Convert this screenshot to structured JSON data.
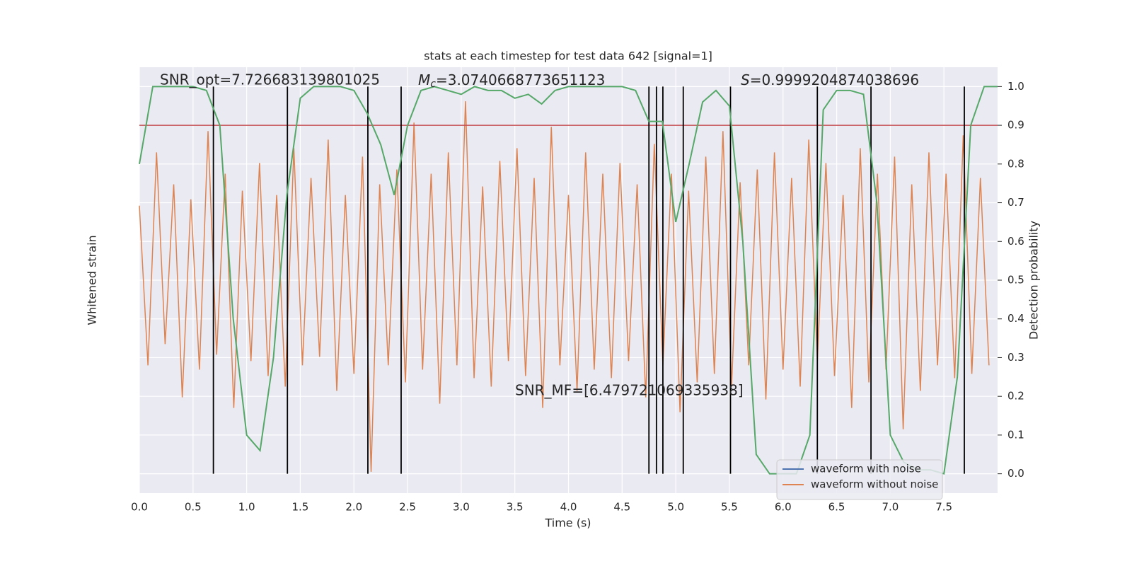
{
  "chart_data": {
    "type": "line",
    "title": "stats at each timestep for test data 642 [signal=1]",
    "x_label": "Time (s)",
    "y_label": "Whitened strain",
    "y2_label": "Detection probability",
    "annotations": {
      "snr_opt": "SNR_opt=7.726683139801025",
      "mc": {
        "symbol": "M",
        "subscript": "c",
        "value": "=3.0740668773651123"
      },
      "s": {
        "symbol": "S",
        "value": "=0.9999204874038696"
      },
      "snr_mf": "SNR_MF=[6.479721069335938]"
    },
    "xlim": [
      0,
      8
    ],
    "xticks": [
      {
        "value": 0,
        "label": "0.0"
      },
      {
        "value": 0.5,
        "label": "0.5"
      },
      {
        "value": 1,
        "label": "1.0"
      },
      {
        "value": 1.5,
        "label": "1.5"
      },
      {
        "value": 2,
        "label": "2.0"
      },
      {
        "value": 2.5,
        "label": "2.5"
      },
      {
        "value": 3,
        "label": "3.0"
      },
      {
        "value": 3.5,
        "label": "3.5"
      },
      {
        "value": 4,
        "label": "4.0"
      },
      {
        "value": 4.5,
        "label": "4.5"
      },
      {
        "value": 5,
        "label": "5.0"
      },
      {
        "value": 5.5,
        "label": "5.5"
      },
      {
        "value": 6,
        "label": "6.0"
      },
      {
        "value": 6.5,
        "label": "6.5"
      },
      {
        "value": 7,
        "label": "7.0"
      },
      {
        "value": 7.5,
        "label": "7.5"
      }
    ],
    "ylim": [
      -1,
      1
    ],
    "y2lim": [
      -0.05,
      1.05
    ],
    "y2ticks": [
      {
        "value": 0,
        "label": "0.0"
      },
      {
        "value": 0.1,
        "label": "0.1"
      },
      {
        "value": 0.2,
        "label": "0.2"
      },
      {
        "value": 0.3,
        "label": "0.3"
      },
      {
        "value": 0.4,
        "label": "0.4"
      },
      {
        "value": 0.5,
        "label": "0.5"
      },
      {
        "value": 0.6,
        "label": "0.6"
      },
      {
        "value": 0.7,
        "label": "0.7"
      },
      {
        "value": 0.8,
        "label": "0.8"
      },
      {
        "value": 0.9,
        "label": "0.9"
      },
      {
        "value": 1,
        "label": "1.0"
      }
    ],
    "grid": true,
    "legend": {
      "loc": "lower right",
      "entries": [
        {
          "name": "waveform with noise",
          "color": "#4c72b0"
        },
        {
          "name": "waveform without noise",
          "color": "#dd8452"
        }
      ]
    },
    "strain": {
      "color": "#dd8452",
      "axis": "y",
      "x": [
        0,
        0.08,
        0.16,
        0.24,
        0.32,
        0.4,
        0.48,
        0.56,
        0.64,
        0.72,
        0.8,
        0.88,
        0.96,
        1.04,
        1.12,
        1.2,
        1.28,
        1.36,
        1.44,
        1.52,
        1.6,
        1.68,
        1.76,
        1.84,
        1.92,
        2,
        2.08,
        2.16,
        2.24,
        2.32,
        2.4,
        2.48,
        2.56,
        2.64,
        2.72,
        2.8,
        2.88,
        2.96,
        3.04,
        3.12,
        3.2,
        3.28,
        3.36,
        3.44,
        3.52,
        3.6,
        3.68,
        3.76,
        3.84,
        3.92,
        4,
        4.08,
        4.16,
        4.24,
        4.32,
        4.4,
        4.48,
        4.56,
        4.64,
        4.72,
        4.8,
        4.88,
        4.96,
        5.04,
        5.12,
        5.2,
        5.28,
        5.36,
        5.44,
        5.52,
        5.6,
        5.68,
        5.76,
        5.84,
        5.92,
        6,
        6.08,
        6.16,
        6.24,
        6.32,
        6.4,
        6.48,
        6.56,
        6.64,
        6.72,
        6.8,
        6.88,
        6.96,
        7.04,
        7.12,
        7.2,
        7.28,
        7.36,
        7.44,
        7.52,
        7.6,
        7.68,
        7.76,
        7.84,
        7.92
      ],
      "values": [
        0.35,
        -0.4,
        0.6,
        -0.3,
        0.45,
        -0.55,
        0.38,
        -0.42,
        0.7,
        -0.35,
        0.5,
        -0.6,
        0.42,
        -0.38,
        0.55,
        -0.45,
        0.4,
        -0.5,
        0.62,
        -0.4,
        0.48,
        -0.36,
        0.66,
        -0.52,
        0.4,
        -0.44,
        0.58,
        -0.9,
        0.45,
        -0.4,
        0.52,
        -0.48,
        0.74,
        -0.42,
        0.5,
        -0.58,
        0.6,
        -0.4,
        0.84,
        -0.46,
        0.44,
        -0.5,
        0.56,
        -0.38,
        0.62,
        -0.45,
        0.48,
        -0.6,
        0.72,
        -0.4,
        0.4,
        -0.52,
        0.6,
        -0.42,
        0.5,
        -0.46,
        0.55,
        -0.38,
        0.45,
        -0.55,
        0.64,
        -0.4,
        0.5,
        -0.62,
        0.42,
        -0.48,
        0.58,
        -0.44,
        0.7,
        -0.5,
        0.46,
        -0.4,
        0.52,
        -0.56,
        0.6,
        -0.42,
        0.48,
        -0.5,
        0.66,
        -0.38,
        0.55,
        -0.45,
        0.4,
        -0.6,
        0.62,
        -0.48,
        0.5,
        -0.42,
        0.58,
        -0.7,
        0.45,
        -0.52,
        0.6,
        -0.4,
        0.5,
        -0.46,
        0.68,
        -0.44,
        0.48,
        -0.4
      ]
    },
    "probability": {
      "color": "#55a868",
      "axis": "y2",
      "x": [
        0,
        0.125,
        0.25,
        0.375,
        0.5,
        0.625,
        0.75,
        0.875,
        1,
        1.125,
        1.25,
        1.375,
        1.5,
        1.625,
        1.75,
        1.875,
        2,
        2.125,
        2.25,
        2.375,
        2.5,
        2.625,
        2.75,
        2.875,
        3,
        3.125,
        3.25,
        3.375,
        3.5,
        3.625,
        3.75,
        3.875,
        4,
        4.125,
        4.25,
        4.375,
        4.5,
        4.625,
        4.75,
        4.875,
        5,
        5.125,
        5.25,
        5.375,
        5.5,
        5.625,
        5.75,
        5.875,
        6,
        6.125,
        6.25,
        6.375,
        6.5,
        6.625,
        6.75,
        6.875,
        7,
        7.125,
        7.25,
        7.375,
        7.5,
        7.625,
        7.75,
        7.875,
        8
      ],
      "values": [
        0.8,
        1,
        1,
        1,
        1,
        0.99,
        0.9,
        0.4,
        0.1,
        0.06,
        0.3,
        0.72,
        0.97,
        1,
        1,
        1,
        0.99,
        0.93,
        0.85,
        0.72,
        0.9,
        0.99,
        1,
        0.99,
        0.98,
        1,
        0.99,
        0.99,
        0.97,
        0.98,
        0.955,
        0.99,
        1,
        1,
        1,
        1,
        1,
        0.99,
        0.91,
        0.91,
        0.65,
        0.8,
        0.96,
        0.99,
        0.95,
        0.6,
        0.05,
        0,
        0,
        0,
        0.1,
        0.94,
        0.99,
        0.99,
        0.98,
        0.7,
        0.1,
        0.03,
        0.01,
        0.01,
        0,
        0.25,
        0.9,
        1,
        1
      ]
    },
    "threshold": {
      "value": 0.9,
      "color": "#c44e52"
    },
    "vlines": [
      0.69,
      1.38,
      2.13,
      2.44,
      4.75,
      4.82,
      4.88,
      5.07,
      5.51,
      6.32,
      6.82,
      7.69
    ]
  }
}
